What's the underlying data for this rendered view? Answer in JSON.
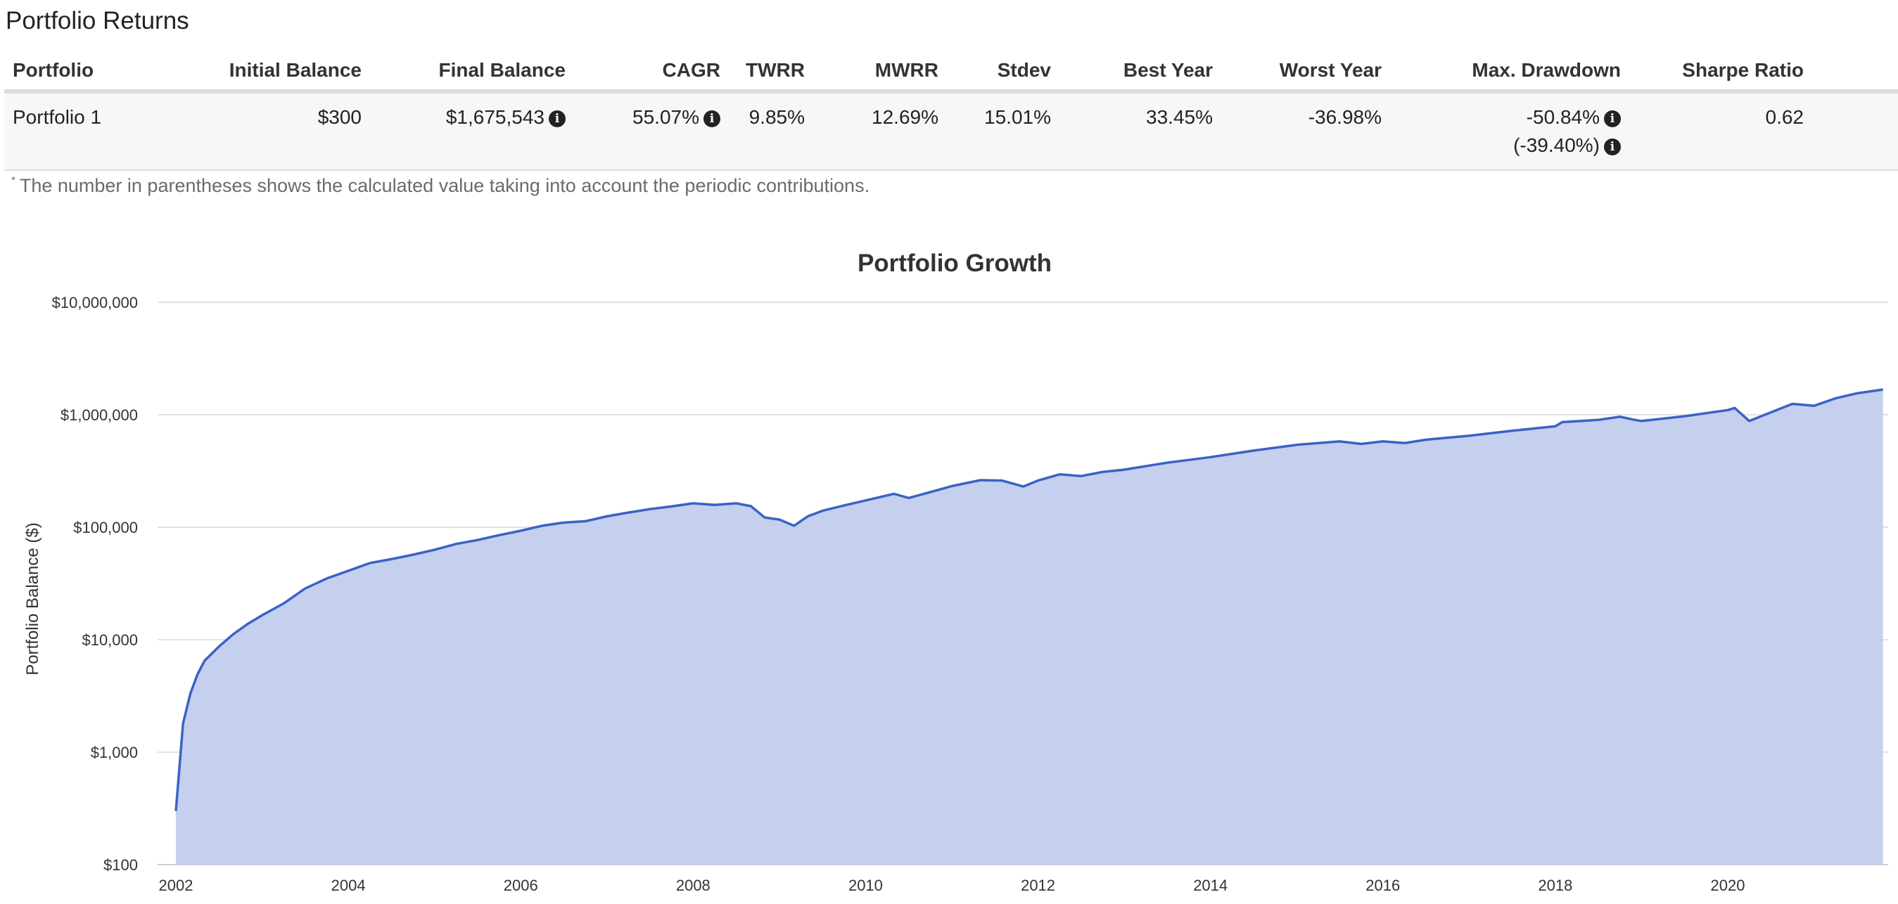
{
  "page": {
    "title": "Portfolio Returns"
  },
  "table": {
    "headers": [
      "Portfolio",
      "Initial Balance",
      "Final Balance",
      "CAGR",
      "TWRR",
      "MWRR",
      "Stdev",
      "Best Year",
      "Worst Year",
      "Max. Drawdown",
      "Sharpe Ratio"
    ],
    "row": {
      "portfolio": "Portfolio 1",
      "initial_balance": "$300",
      "final_balance": "$1,675,543",
      "cagr": "55.07%",
      "twrr": "9.85%",
      "mwrr": "12.69%",
      "stdev": "15.01%",
      "best_year": "33.45%",
      "worst_year": "-36.98%",
      "max_drawdown": "-50.84%",
      "max_drawdown_contrib": "(-39.40%)",
      "sharpe_ratio": "0.62"
    },
    "info_icon_glyph": "i"
  },
  "footnote": {
    "marker": "*",
    "text": "The number in parentheses shows the calculated value taking into account the periodic contributions."
  },
  "chart_data": {
    "type": "area",
    "title": "Portfolio Growth",
    "ylabel": "Portfolio Balance ($)",
    "xlabel": "",
    "y_scale": "log",
    "ylim": [
      100,
      10000000
    ],
    "xlim": [
      2002,
      2021.8
    ],
    "y_ticks": [
      100,
      1000,
      10000,
      100000,
      1000000,
      10000000
    ],
    "y_tick_labels": [
      "$100",
      "$1,000",
      "$10,000",
      "$100,000",
      "$1,000,000",
      "$10,000,000"
    ],
    "x_ticks": [
      2002,
      2004,
      2006,
      2008,
      2010,
      2012,
      2014,
      2016,
      2018,
      2020
    ],
    "x_tick_labels": [
      "2002",
      "2004",
      "2006",
      "2008",
      "2010",
      "2012",
      "2014",
      "2016",
      "2018",
      "2020"
    ],
    "grid": true,
    "legend": "none",
    "line_color": "#3a62c6",
    "fill_color": "#c5d0ee",
    "series": [
      {
        "x": [
          2002.0,
          2002.083,
          2002.167,
          2002.25,
          2002.333,
          2002.5,
          2002.667,
          2002.833,
          2003.0,
          2003.25,
          2003.5,
          2003.75,
          2004.0,
          2004.25,
          2004.5,
          2004.75,
          2005.0,
          2005.25,
          2005.5,
          2005.75,
          2006.0,
          2006.25,
          2006.5,
          2006.75,
          2007.0,
          2007.25,
          2007.5,
          2007.75,
          2008.0,
          2008.25,
          2008.5,
          2008.67,
          2008.83,
          2009.0,
          2009.17,
          2009.33,
          2009.5,
          2009.75,
          2010.0,
          2010.33,
          2010.5,
          2010.75,
          2011.0,
          2011.33,
          2011.58,
          2011.83,
          2012.0,
          2012.25,
          2012.5,
          2012.75,
          2013.0,
          2013.5,
          2014.0,
          2014.5,
          2015.0,
          2015.5,
          2015.75,
          2016.0,
          2016.25,
          2016.5,
          2017.0,
          2017.5,
          2018.0,
          2018.08,
          2018.5,
          2018.75,
          2018.92,
          2019.0,
          2019.5,
          2020.0,
          2020.08,
          2020.25,
          2020.5,
          2020.75,
          2021.0,
          2021.25,
          2021.5,
          2021.8
        ],
        "y": [
          300,
          1800,
          3300,
          4900,
          6500,
          8700,
          11200,
          13800,
          16500,
          21000,
          28500,
          35000,
          41000,
          48000,
          52000,
          57000,
          63000,
          71000,
          77000,
          85000,
          93000,
          103000,
          110000,
          113000,
          125000,
          135000,
          145000,
          153000,
          163000,
          158000,
          163000,
          154000,
          122000,
          117000,
          103000,
          125000,
          140000,
          156000,
          173000,
          198000,
          182000,
          205000,
          232000,
          262000,
          260000,
          230000,
          260000,
          295000,
          285000,
          310000,
          325000,
          375000,
          420000,
          480000,
          540000,
          580000,
          550000,
          580000,
          560000,
          600000,
          650000,
          720000,
          790000,
          860000,
          900000,
          960000,
          900000,
          880000,
          970000,
          1100000,
          1150000,
          880000,
          1050000,
          1250000,
          1200000,
          1400000,
          1550000,
          1675543
        ]
      }
    ]
  }
}
